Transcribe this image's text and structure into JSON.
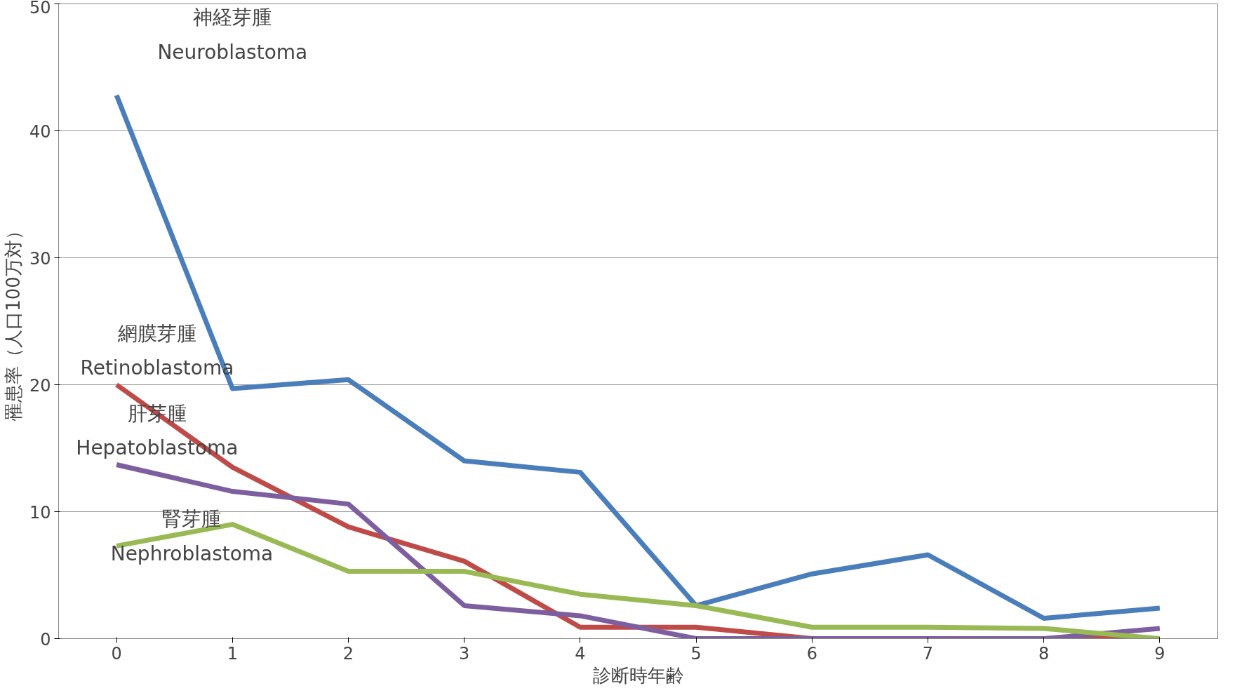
{
  "chart_data": {
    "type": "line",
    "xlabel": "診断時年齢",
    "ylabel": "罹患率（人口100万対）",
    "categories": [
      "0",
      "1",
      "2",
      "3",
      "4",
      "5",
      "6",
      "7",
      "8",
      "9"
    ],
    "ylim": [
      0,
      50
    ],
    "yticks": [
      0,
      10,
      20,
      30,
      40,
      50
    ],
    "grid": "y",
    "marker": "none",
    "line_style": "solid",
    "series": [
      {
        "name": "神経芽腫\nNeuroblastoma",
        "color": "#4a7ebb",
        "values": [
          42.8,
          19.7,
          20.4,
          14.0,
          13.1,
          2.6,
          5.1,
          6.6,
          1.6,
          2.4
        ]
      },
      {
        "name": "網膜芽腫\nRetinoblastoma",
        "color": "#be4b48",
        "values": [
          20.0,
          13.5,
          8.8,
          6.1,
          0.9,
          0.9,
          0,
          0,
          0,
          0
        ]
      },
      {
        "name": "肝芽腫\nHepatoblastoma",
        "color": "#7d5fa0",
        "values": [
          13.7,
          11.6,
          10.6,
          2.6,
          1.8,
          0,
          0,
          0,
          0,
          0.8
        ]
      },
      {
        "name": "腎芽腫\nNephroblastoma",
        "color": "#98b954",
        "values": [
          7.3,
          9.0,
          5.3,
          5.3,
          3.5,
          2.6,
          0.9,
          0.9,
          0.8,
          0
        ]
      }
    ]
  }
}
